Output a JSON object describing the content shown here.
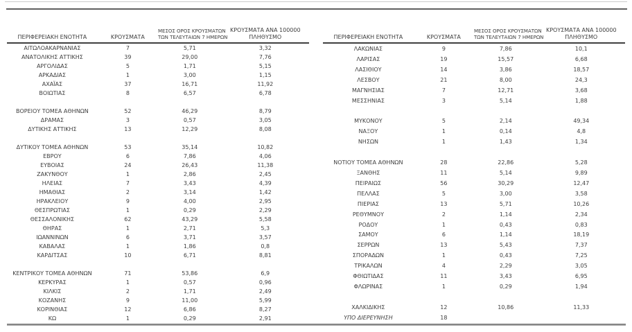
{
  "headers": {
    "region": "ΠΕΡΙΦΕΡΕΙΑΚΗ ΕΝΟΤΗΤΑ",
    "cases": "ΚΡΟΥΣΜΑΤΑ",
    "avg7_line1": "ΜΕΣΟΣ ΟΡΟΣ ΚΡΟΥΣΜΑΤΩΝ",
    "avg7_line2": "ΤΩΝ ΤΕΛΕΥΤΑΙΩΝ 7 ΗΜΕΡΩΝ",
    "per100k_line1": "ΚΡΟΥΣΜΑΤΑ ΑΝΑ 100000",
    "per100k_line2": "ΠΛΗΘΥΣΜΟ"
  },
  "colors": {
    "text": "#3d3d3d",
    "rule_light": "#cbcbcb",
    "rule_dark": "#5f5f5f",
    "header_border": "#3f3f3f"
  },
  "left_table": {
    "rows": [
      {
        "region": "ΑΙΤΩΛΟΑΚΑΡΝΑΝΙΑΣ",
        "cases": "7",
        "avg7": "5,71",
        "per100k": "3,32"
      },
      {
        "region": "ΑΝΑΤΟΛΙΚΗΣ ΑΤΤΙΚΗΣ",
        "cases": "39",
        "avg7": "29,00",
        "per100k": "7,76"
      },
      {
        "region": "ΑΡΓΟΛΙΔΑΣ",
        "cases": "5",
        "avg7": "1,71",
        "per100k": "5,15"
      },
      {
        "region": "ΑΡΚΑΔΙΑΣ",
        "cases": "1",
        "avg7": "3,00",
        "per100k": "1,15"
      },
      {
        "region": "ΑΧΑΪΑΣ",
        "cases": "37",
        "avg7": "16,71",
        "per100k": "11,92"
      },
      {
        "region": "ΒΟΙΩΤΙΑΣ",
        "cases": "8",
        "avg7": "6,57",
        "per100k": "6,78"
      },
      {
        "blank": true
      },
      {
        "region": "ΒΟΡΕΙΟΥ ΤΟΜΕΑ ΑΘΗΝΩΝ",
        "cases": "52",
        "avg7": "46,29",
        "per100k": "8,79"
      },
      {
        "region": "ΔΡΑΜΑΣ",
        "cases": "3",
        "avg7": "0,57",
        "per100k": "3,05"
      },
      {
        "region": "ΔΥΤΙΚΗΣ ΑΤΤΙΚΗΣ",
        "cases": "13",
        "avg7": "12,29",
        "per100k": "8,08"
      },
      {
        "blank": true
      },
      {
        "region": "ΔΥΤΙΚΟΥ ΤΟΜΕΑ ΑΘΗΝΩΝ",
        "cases": "53",
        "avg7": "35,14",
        "per100k": "10,82"
      },
      {
        "region": "ΕΒΡΟΥ",
        "cases": "6",
        "avg7": "7,86",
        "per100k": "4,06"
      },
      {
        "region": "ΕΥΒΟΙΑΣ",
        "cases": "24",
        "avg7": "26,43",
        "per100k": "11,38"
      },
      {
        "region": "ΖΑΚΥΝΘΟΥ",
        "cases": "1",
        "avg7": "2,86",
        "per100k": "2,45"
      },
      {
        "region": "ΗΛΕΙΑΣ",
        "cases": "7",
        "avg7": "3,43",
        "per100k": "4,39"
      },
      {
        "region": "ΗΜΑΘΙΑΣ",
        "cases": "2",
        "avg7": "3,14",
        "per100k": "1,42"
      },
      {
        "region": "ΗΡΑΚΛΕΙΟΥ",
        "cases": "9",
        "avg7": "4,00",
        "per100k": "2,95"
      },
      {
        "region": "ΘΕΣΠΡΩΤΙΑΣ",
        "cases": "1",
        "avg7": "0,29",
        "per100k": "2,29"
      },
      {
        "region": "ΘΕΣΣΑΛΟΝΙΚΗΣ",
        "cases": "62",
        "avg7": "43,29",
        "per100k": "5,58"
      },
      {
        "region": "ΘΗΡΑΣ",
        "cases": "1",
        "avg7": "2,71",
        "per100k": "5,3"
      },
      {
        "region": "ΙΩΑΝΝΙΝΩΝ",
        "cases": "6",
        "avg7": "3,71",
        "per100k": "3,57"
      },
      {
        "region": "ΚΑΒΑΛΑΣ",
        "cases": "1",
        "avg7": "1,86",
        "per100k": "0,8"
      },
      {
        "region": "ΚΑΡΔΙΤΣΑΣ",
        "cases": "10",
        "avg7": "6,71",
        "per100k": "8,81"
      },
      {
        "blank": true
      },
      {
        "region": "ΚΕΝΤΡΙΚΟΥ ΤΟΜΕΑ ΑΘΗΝΩΝ",
        "cases": "71",
        "avg7": "53,86",
        "per100k": "6,9"
      },
      {
        "region": "ΚΕΡΚΥΡΑΣ",
        "cases": "1",
        "avg7": "0,57",
        "per100k": "0,96"
      },
      {
        "region": "ΚΙΛΚΙΣ",
        "cases": "2",
        "avg7": "1,71",
        "per100k": "2,49"
      },
      {
        "region": "ΚΟΖΑΝΗΣ",
        "cases": "9",
        "avg7": "11,00",
        "per100k": "5,99"
      },
      {
        "region": "ΚΟΡΙΝΘΙΑΣ",
        "cases": "12",
        "avg7": "6,86",
        "per100k": "8,27"
      },
      {
        "region": "ΚΩ",
        "cases": "1",
        "avg7": "0,29",
        "per100k": "2,91"
      }
    ]
  },
  "right_table": {
    "rows": [
      {
        "region": "ΛΑΚΩΝΙΑΣ",
        "cases": "9",
        "avg7": "7,86",
        "per100k": "10,1"
      },
      {
        "region": "ΛΑΡΙΣΑΣ",
        "cases": "19",
        "avg7": "15,57",
        "per100k": "6,68"
      },
      {
        "region": "ΛΑΣΙΘΙΟΥ",
        "cases": "14",
        "avg7": "3,86",
        "per100k": "18,57"
      },
      {
        "region": "ΛΕΣΒΟΥ",
        "cases": "21",
        "avg7": "8,00",
        "per100k": "24,3"
      },
      {
        "region": "ΜΑΓΝΗΣΙΑΣ",
        "cases": "7",
        "avg7": "12,71",
        "per100k": "3,68"
      },
      {
        "region": "ΜΕΣΣΗΝΙΑΣ",
        "cases": "3",
        "avg7": "5,14",
        "per100k": "1,88"
      },
      {
        "blank": true
      },
      {
        "region": "ΜΥΚΟΝΟΥ",
        "cases": "5",
        "avg7": "2,14",
        "per100k": "49,34"
      },
      {
        "region": "ΝΑΞΟΥ",
        "cases": "1",
        "avg7": "0,14",
        "per100k": "4,8"
      },
      {
        "region": "ΝΗΣΩΝ",
        "cases": "1",
        "avg7": "1,43",
        "per100k": "1,34"
      },
      {
        "blank": true
      },
      {
        "region": "ΝΟΤΙΟΥ ΤΟΜΕΑ ΑΘΗΝΩΝ",
        "cases": "28",
        "avg7": "22,86",
        "per100k": "5,28"
      },
      {
        "region": "ΞΑΝΘΗΣ",
        "cases": "11",
        "avg7": "5,14",
        "per100k": "9,89"
      },
      {
        "region": "ΠΕΙΡΑΙΩΣ",
        "cases": "56",
        "avg7": "30,29",
        "per100k": "12,47"
      },
      {
        "region": "ΠΕΛΛΑΣ",
        "cases": "5",
        "avg7": "3,00",
        "per100k": "3,58"
      },
      {
        "region": "ΠΙΕΡΙΑΣ",
        "cases": "13",
        "avg7": "5,71",
        "per100k": "10,26"
      },
      {
        "region": "ΡΕΘΥΜΝΟΥ",
        "cases": "2",
        "avg7": "1,14",
        "per100k": "2,34"
      },
      {
        "region": "ΡΟΔΟΥ",
        "cases": "1",
        "avg7": "0,43",
        "per100k": "0,83"
      },
      {
        "region": "ΣΑΜΟΥ",
        "cases": "6",
        "avg7": "1,14",
        "per100k": "18,19"
      },
      {
        "region": "ΣΕΡΡΩΝ",
        "cases": "13",
        "avg7": "5,43",
        "per100k": "7,37"
      },
      {
        "region": "ΣΠΟΡΑΔΩΝ",
        "cases": "1",
        "avg7": "0,43",
        "per100k": "7,25"
      },
      {
        "region": "ΤΡΙΚΑΛΩΝ",
        "cases": "4",
        "avg7": "2,29",
        "per100k": "3,05"
      },
      {
        "region": "ΦΘΙΩΤΙΔΑΣ",
        "cases": "11",
        "avg7": "3,43",
        "per100k": "6,95"
      },
      {
        "region": "ΦΛΩΡΙΝΑΣ",
        "cases": "1",
        "avg7": "0,29",
        "per100k": "1,94"
      },
      {
        "blank": true
      },
      {
        "region": "ΧΑΛΚΙΔΙΚΗΣ",
        "cases": "12",
        "avg7": "10,86",
        "per100k": "11,33"
      },
      {
        "region": "ΥΠΟ ΔΙΕΡΕΥΝΗΣΗ",
        "cases": "18",
        "avg7": "",
        "per100k": "",
        "italic": true
      }
    ]
  }
}
